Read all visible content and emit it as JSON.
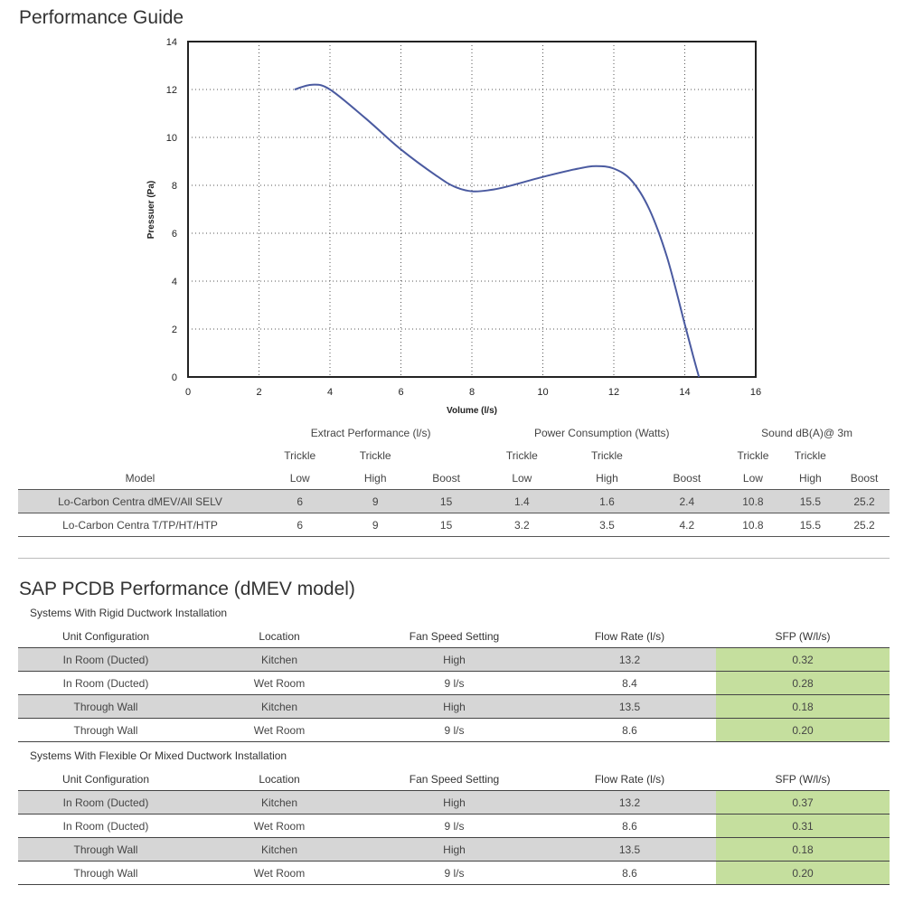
{
  "title": "Performance Guide",
  "chart_data": {
    "type": "line",
    "xlabel": "Volume (l/s)",
    "ylabel": "Pressuer (Pa)",
    "xlim": [
      0,
      16
    ],
    "ylim": [
      0,
      14
    ],
    "xticks": [
      0,
      2,
      4,
      6,
      8,
      10,
      12,
      14,
      16
    ],
    "yticks": [
      0,
      2,
      4,
      6,
      8,
      10,
      12,
      14
    ],
    "grid": true,
    "color": "#4a5aa0",
    "series": [
      {
        "x": [
          3.0,
          3.5,
          4.0,
          5.0,
          6.0,
          7.0,
          7.5,
          8.0,
          8.5,
          9.0,
          10.0,
          11.0,
          11.5,
          12.0,
          12.5,
          13.0,
          13.5,
          14.0,
          14.25,
          14.4
        ],
        "y": [
          12.0,
          12.2,
          12.0,
          10.8,
          9.5,
          8.4,
          7.95,
          7.75,
          7.8,
          7.95,
          8.35,
          8.7,
          8.8,
          8.7,
          8.2,
          7.0,
          5.0,
          2.2,
          0.8,
          0.0
        ]
      }
    ]
  },
  "perf_table": {
    "groups": [
      "Extract Performance (l/s)",
      "Power Consumption (Watts)",
      "Sound dB(A)@ 3m"
    ],
    "sub1": [
      "Trickle",
      "Trickle"
    ],
    "model_label": "Model",
    "sub2": [
      "Low",
      "High",
      "Boost"
    ],
    "rows": [
      {
        "model": "Lo-Carbon Centra dMEV/All SELV",
        "values": [
          "6",
          "9",
          "15",
          "1.4",
          "1.6",
          "2.4",
          "10.8",
          "15.5",
          "25.2"
        ]
      },
      {
        "model": "Lo-Carbon Centra T/TP/HT/HTP",
        "values": [
          "6",
          "9",
          "15",
          "3.2",
          "3.5",
          "4.2",
          "10.8",
          "15.5",
          "25.2"
        ]
      }
    ]
  },
  "sap": {
    "title": "SAP PCDB Performance (dMEV model)",
    "headers": [
      "Unit Configuration",
      "Location",
      "Fan Speed Setting",
      "Flow Rate (l/s)",
      "SFP (W/l/s)"
    ],
    "rigid": {
      "title": "Systems With Rigid Ductwork Installation",
      "rows": [
        [
          "In Room (Ducted)",
          "Kitchen",
          "High",
          "13.2",
          "0.32"
        ],
        [
          "In Room (Ducted)",
          "Wet Room",
          "9 l/s",
          "8.4",
          "0.28"
        ],
        [
          "Through Wall",
          "Kitchen",
          "High",
          "13.5",
          "0.18"
        ],
        [
          "Through Wall",
          "Wet Room",
          "9 l/s",
          "8.6",
          "0.20"
        ]
      ]
    },
    "flex": {
      "title": "Systems With Flexible Or Mixed Ductwork Installation",
      "rows": [
        [
          "In Room (Ducted)",
          "Kitchen",
          "High",
          "13.2",
          "0.37"
        ],
        [
          "In Room (Ducted)",
          "Wet Room",
          "9 l/s",
          "8.6",
          "0.31"
        ],
        [
          "Through Wall",
          "Kitchen",
          "High",
          "13.5",
          "0.18"
        ],
        [
          "Through Wall",
          "Wet Room",
          "9 l/s",
          "8.6",
          "0.20"
        ]
      ]
    }
  }
}
